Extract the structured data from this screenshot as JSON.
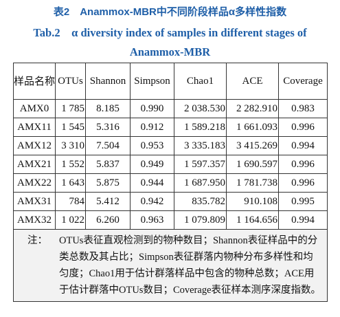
{
  "title_cn": "表2　Anammox-MBR中不同阶段样品α多样性指数",
  "title_en": "Tab.2　α diversity index of samples in different stages of Anammox-MBR",
  "table": {
    "headers": [
      "样品名称",
      "OTUs",
      "Shannon",
      "Simpson",
      "Chao1",
      "ACE",
      "Coverage"
    ],
    "rows": [
      [
        "AMX0",
        "1 785",
        "8.185",
        "0.990",
        "2 038.530",
        "2 282.910",
        "0.983"
      ],
      [
        "AMX11",
        "1 545",
        "5.316",
        "0.912",
        "1 589.218",
        "1 661.093",
        "0.996"
      ],
      [
        "AMX12",
        "3 310",
        "7.504",
        "0.953",
        "3 335.183",
        "3 415.269",
        "0.994"
      ],
      [
        "AMX21",
        "1 552",
        "5.837",
        "0.949",
        "1 597.357",
        "1 690.597",
        "0.996"
      ],
      [
        "AMX22",
        "1 643",
        "5.875",
        "0.944",
        "1 687.950",
        "1 781.738",
        "0.996"
      ],
      [
        "AMX31",
        "784",
        "5.412",
        "0.942",
        "835.782",
        "910.108",
        "0.995"
      ],
      [
        "AMX32",
        "1 022",
        "6.260",
        "0.963",
        "1 079.809",
        "1 164.656",
        "0.994"
      ]
    ]
  },
  "note": {
    "label": "注：",
    "text": "OTUs表征直观检测到的物种数目；Shannon表征样品中的分类总数及其占比；Simpson表征群落内物种分布多样性和均匀度；Chao1用于估计群落样品中包含的物种总数；ACE用于估计群落中OTUs数目；Coverage表征样本测序深度指数。"
  },
  "colors": {
    "title": "#1f5fa8",
    "note_bg": "#f2f2f2",
    "border": "#333333"
  }
}
